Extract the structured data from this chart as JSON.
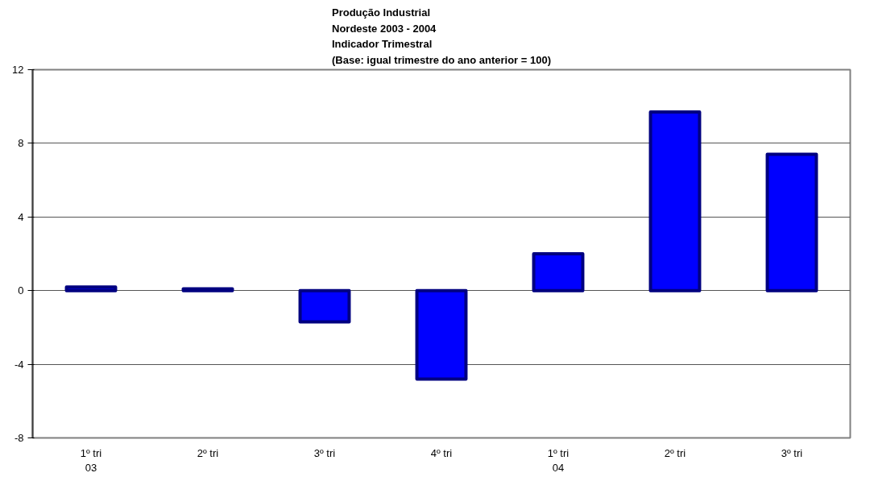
{
  "chart_data": {
    "type": "bar",
    "title": "Produção Industrial\nNordeste 2003 - 2004\nIndicador Trimestral\n(Base: igual trimestre do ano anterior = 100)",
    "categories": [
      "1º tri\n03",
      "2º tri",
      "3º tri",
      "4º tri",
      "1º tri\n04",
      "2º tri",
      "3º tri"
    ],
    "values": [
      0.2,
      0.1,
      -1.7,
      -4.8,
      2.0,
      9.7,
      7.4
    ],
    "color": "#0000ff",
    "ylim": [
      -8,
      12
    ],
    "yticks": [
      -8,
      -4,
      0,
      4,
      8,
      12
    ],
    "grid": "y"
  }
}
